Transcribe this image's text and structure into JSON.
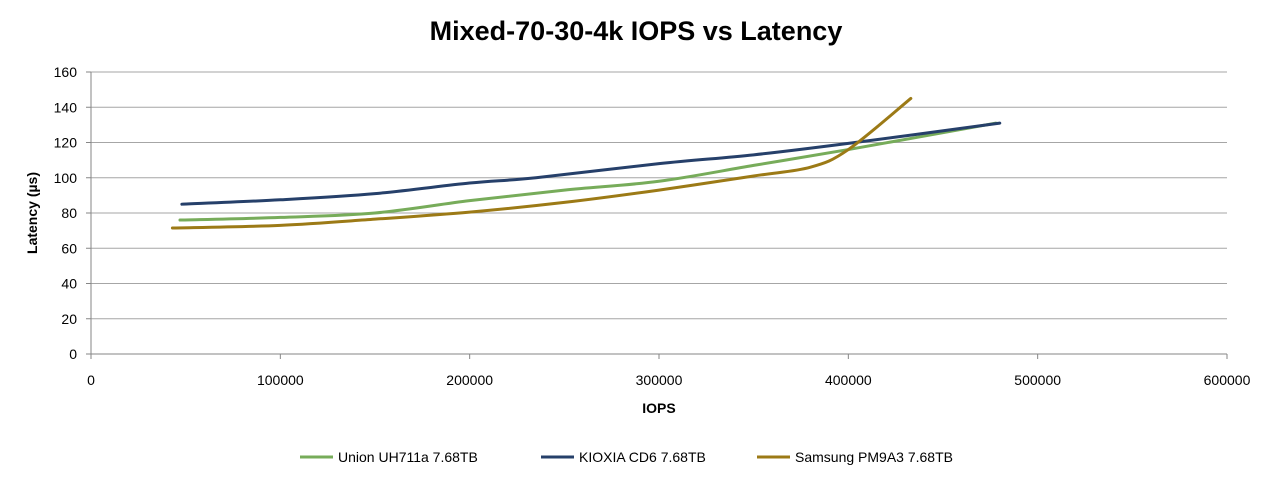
{
  "chart_data": {
    "type": "line",
    "title": "Mixed-70-30-4k IOPS vs Latency",
    "xlabel": "IOPS",
    "ylabel": "Latency (µs)",
    "xlim": [
      0,
      600000
    ],
    "ylim": [
      0,
      160
    ],
    "xticks": [
      "0",
      "100000",
      "200000",
      "300000",
      "400000",
      "500000",
      "600000"
    ],
    "yticks": [
      "0",
      "20",
      "40",
      "60",
      "80",
      "100",
      "120",
      "140",
      "160"
    ],
    "grid": "horizontal",
    "legend": "bottom",
    "series": [
      {
        "name": "Union UH711a 7.68TB",
        "color": "#77AC5A",
        "x": [
          47000,
          100000,
          150000,
          200000,
          250000,
          300000,
          350000,
          400000,
          478000
        ],
        "y": [
          76,
          77.5,
          80,
          87,
          93,
          98,
          107,
          116,
          131
        ]
      },
      {
        "name": "KIOXIA CD6 7.68TB",
        "color": "#26406A",
        "x": [
          48000,
          100000,
          150000,
          200000,
          235000,
          300000,
          350000,
          400000,
          480000
        ],
        "y": [
          85,
          87.5,
          91,
          97,
          100,
          108,
          113,
          119.5,
          131
        ]
      },
      {
        "name": "Samsung PM9A3 7.68TB",
        "color": "#9C7A16",
        "x": [
          43000,
          100000,
          150000,
          200000,
          250000,
          300000,
          350000,
          380000,
          400000,
          433000
        ],
        "y": [
          71.5,
          73,
          76.5,
          80.5,
          86,
          93,
          101,
          106,
          116,
          145
        ]
      }
    ]
  }
}
